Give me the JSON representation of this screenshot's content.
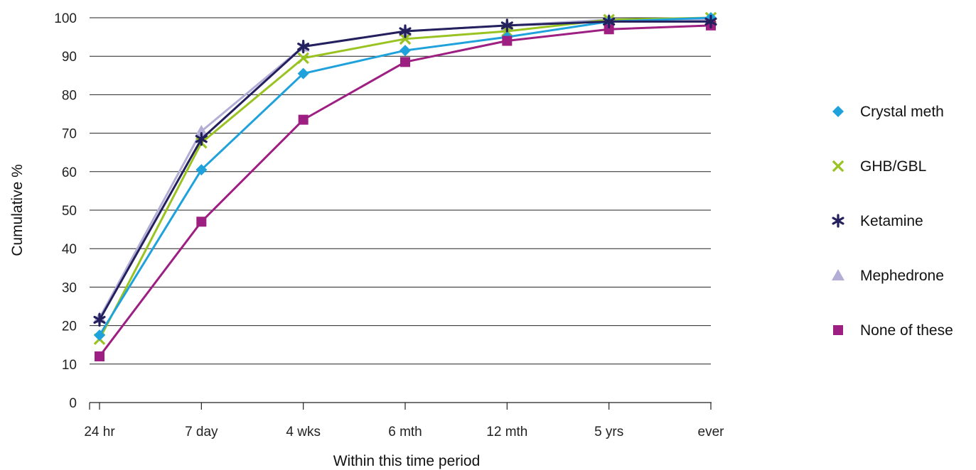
{
  "chart_data": {
    "type": "line",
    "title": "",
    "xlabel": "Within this time period",
    "ylabel": "Cumulative %",
    "ylim": [
      0,
      100
    ],
    "yticks": [
      "0",
      "10",
      "20",
      "30",
      "40",
      "50",
      "60",
      "70",
      "80",
      "90",
      "100"
    ],
    "grid": "horizontal",
    "legend_position": "right",
    "categories": [
      "24 hr",
      "7 day",
      "4 wks",
      "6 mth",
      "12 mth",
      "5 yrs",
      "ever"
    ],
    "series": [
      {
        "name": "Mephedrone",
        "marker": "triangle",
        "color": "#b3aed6",
        "values": [
          22,
          70.5,
          92.5,
          96.5,
          98,
          99.5,
          99.5
        ]
      },
      {
        "name": "GHB/GBL",
        "marker": "x",
        "color": "#99c321",
        "values": [
          16.5,
          67.5,
          89.5,
          94.5,
          96.5,
          99.5,
          100
        ]
      },
      {
        "name": "Crystal meth",
        "marker": "diamond",
        "color": "#1fa2dc",
        "values": [
          17.5,
          60.5,
          85.5,
          91.5,
          95,
          99,
          100
        ]
      },
      {
        "name": "None of these",
        "marker": "square",
        "color": "#9e1f82",
        "values": [
          12,
          47,
          73.5,
          88.5,
          94,
          97,
          98
        ]
      },
      {
        "name": "Ketamine",
        "marker": "asterisk",
        "color": "#24205e",
        "values": [
          21.5,
          68.5,
          92.5,
          96.5,
          98,
          99,
          99
        ]
      }
    ],
    "legend_order": [
      "Crystal meth",
      "GHB/GBL",
      "Ketamine",
      "Mephedrone",
      "None of these"
    ]
  }
}
